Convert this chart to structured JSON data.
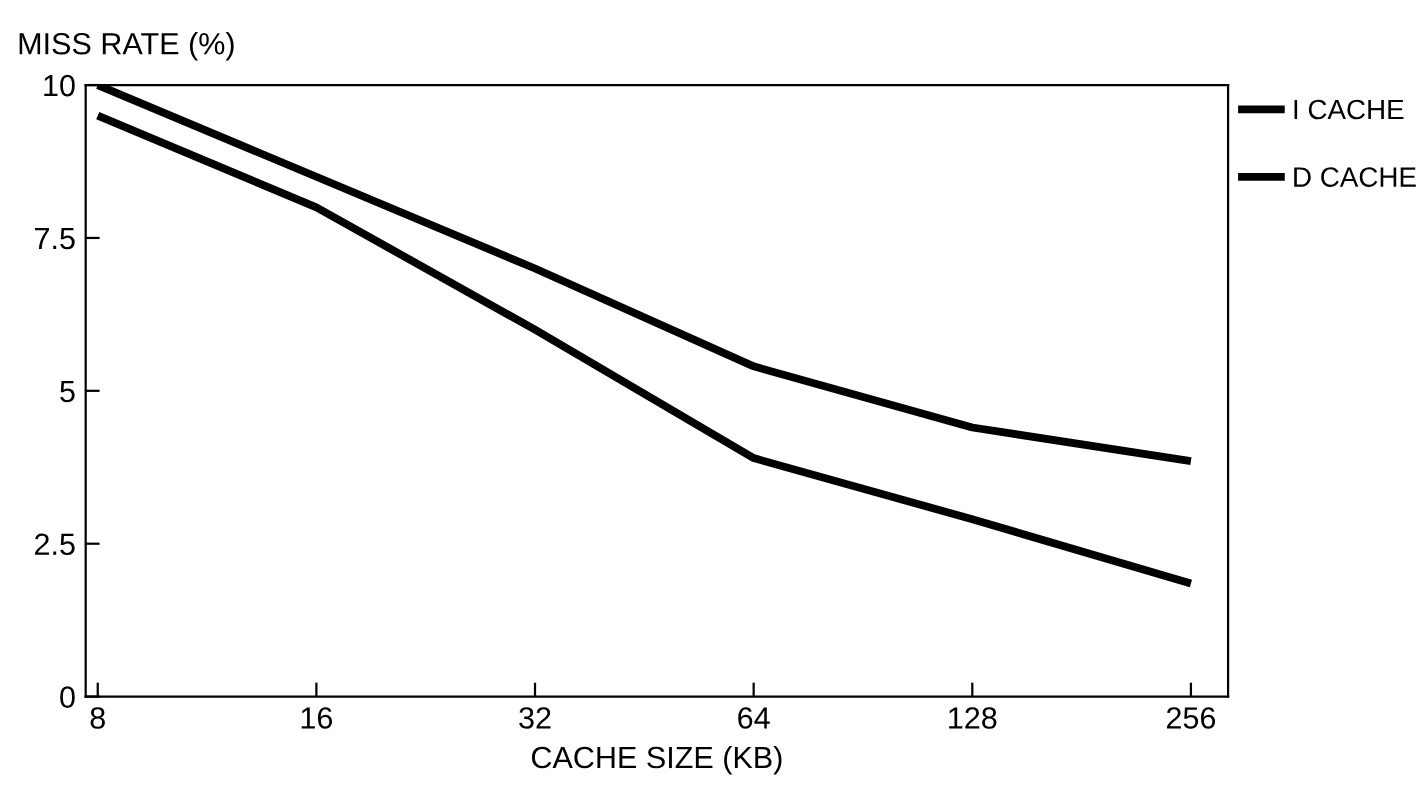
{
  "chart_data": {
    "type": "line",
    "ylabel": "MISS RATE (%)",
    "xlabel": "CACHE SIZE (KB)",
    "x": [
      8,
      16,
      32,
      64,
      128,
      256
    ],
    "series": [
      {
        "name": "I CACHE",
        "color": "#000000",
        "values": [
          10,
          8.5,
          7.0,
          5.4,
          4.4,
          3.85
        ]
      },
      {
        "name": "D CACHE",
        "color": "#000000",
        "values": [
          9.5,
          8.0,
          6.0,
          3.9,
          2.9,
          1.85
        ]
      }
    ],
    "log": "x",
    "xlim": [
      7.7,
      288
    ],
    "xticks": [
      8,
      16,
      32,
      64,
      128,
      256
    ],
    "ylim": [
      0,
      10
    ],
    "yticks": [
      0,
      2.5,
      5,
      7.5,
      10
    ],
    "grid": false,
    "legend": "right",
    "marker": "none",
    "line_style": "solid"
  }
}
